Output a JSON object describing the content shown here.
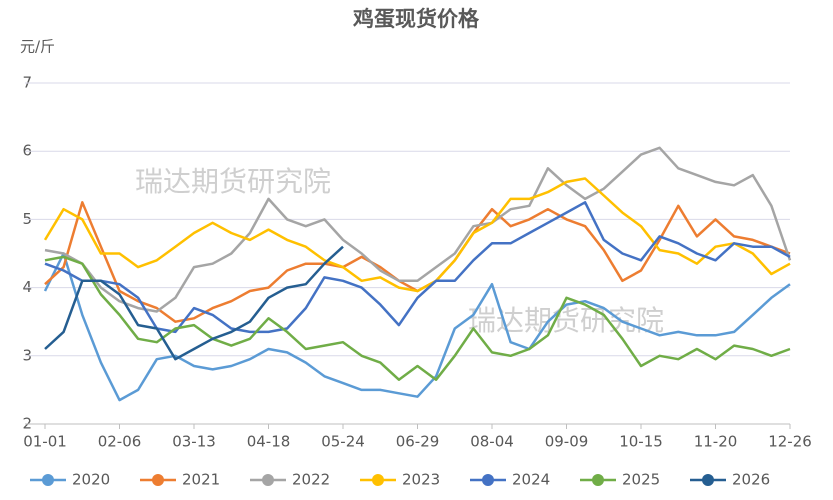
{
  "chart_data": {
    "type": "line",
    "title": "鸡蛋现货价格",
    "ylabel": "元/斤",
    "annotations": [
      "瑞达期货研究院",
      "瑞达期货研究院"
    ],
    "categories": [
      "01-01",
      null,
      null,
      null,
      "02-06",
      null,
      null,
      null,
      "03-13",
      null,
      null,
      null,
      "04-18",
      null,
      null,
      null,
      "05-24",
      null,
      null,
      null,
      "06-29",
      null,
      null,
      null,
      "08-04",
      null,
      null,
      null,
      "09-09",
      null,
      null,
      null,
      "10-15",
      null,
      null,
      null,
      "11-20",
      null,
      null,
      null,
      "12-26"
    ],
    "ylim": [
      2,
      7
    ],
    "yticks": [
      2,
      3,
      4,
      5,
      6,
      7
    ],
    "grid": true,
    "series": [
      {
        "name": "2020",
        "color": "#5b9bd5",
        "values": [
          3.95,
          4.5,
          3.6,
          2.9,
          2.35,
          2.5,
          2.95,
          3.0,
          2.85,
          2.8,
          2.85,
          2.95,
          3.1,
          3.05,
          2.9,
          2.7,
          2.6,
          2.5,
          2.5,
          2.45,
          2.4,
          2.7,
          3.4,
          3.6,
          4.05,
          3.2,
          3.1,
          3.5,
          3.75,
          3.8,
          3.7,
          3.5,
          3.4,
          3.3,
          3.35,
          3.3,
          3.3,
          3.35,
          3.6,
          3.85,
          4.05
        ]
      },
      {
        "name": "2021",
        "color": "#ed7d31",
        "values": [
          4.05,
          4.3,
          5.25,
          4.6,
          3.95,
          3.8,
          3.7,
          3.5,
          3.55,
          3.7,
          3.8,
          3.95,
          4.0,
          4.25,
          4.35,
          4.35,
          4.3,
          4.45,
          4.3,
          4.1,
          3.95,
          4.1,
          4.4,
          4.8,
          5.15,
          4.9,
          5.0,
          5.15,
          5.0,
          4.9,
          4.55,
          4.1,
          4.25,
          4.7,
          5.2,
          4.75,
          5.0,
          4.75,
          4.7,
          4.6,
          4.5
        ]
      },
      {
        "name": "2022",
        "color": "#a5a5a5",
        "values": [
          4.55,
          4.5,
          4.35,
          4.0,
          3.8,
          3.7,
          3.65,
          3.85,
          4.3,
          4.35,
          4.5,
          4.8,
          5.3,
          5.0,
          4.9,
          5.0,
          4.7,
          4.5,
          4.25,
          4.1,
          4.1,
          4.3,
          4.5,
          4.9,
          4.95,
          5.15,
          5.2,
          5.75,
          5.5,
          5.3,
          5.45,
          5.7,
          5.95,
          6.05,
          5.75,
          5.65,
          5.55,
          5.5,
          5.65,
          5.2,
          4.4
        ]
      },
      {
        "name": "2023",
        "color": "#ffc000",
        "values": [
          4.7,
          5.15,
          5.0,
          4.5,
          4.5,
          4.3,
          4.4,
          4.6,
          4.8,
          4.95,
          4.8,
          4.7,
          4.85,
          4.7,
          4.6,
          4.4,
          4.3,
          4.1,
          4.15,
          4.0,
          3.95,
          4.1,
          4.4,
          4.8,
          4.95,
          5.3,
          5.3,
          5.4,
          5.55,
          5.6,
          5.35,
          5.1,
          4.9,
          4.55,
          4.5,
          4.35,
          4.6,
          4.65,
          4.5,
          4.2,
          4.35
        ]
      },
      {
        "name": "2024",
        "color": "#4472c4",
        "values": [
          4.35,
          4.25,
          4.1,
          4.1,
          4.05,
          3.85,
          3.4,
          3.35,
          3.7,
          3.6,
          3.4,
          3.35,
          3.35,
          3.4,
          3.7,
          4.15,
          4.1,
          4.0,
          3.75,
          3.45,
          3.85,
          4.1,
          4.1,
          4.4,
          4.65,
          4.65,
          4.8,
          4.95,
          5.1,
          5.25,
          4.7,
          4.5,
          4.4,
          4.75,
          4.65,
          4.5,
          4.4,
          4.65,
          4.6,
          4.6,
          4.45
        ]
      },
      {
        "name": "2025",
        "color": "#70ad47",
        "values": [
          4.4,
          4.45,
          4.35,
          3.9,
          3.6,
          3.25,
          3.2,
          3.4,
          3.45,
          3.25,
          3.15,
          3.25,
          3.55,
          3.35,
          3.1,
          3.15,
          3.2,
          3.0,
          2.9,
          2.65,
          2.85,
          2.65,
          3.0,
          3.4,
          3.05,
          3.0,
          3.1,
          3.3,
          3.85,
          3.75,
          3.6,
          3.25,
          2.85,
          3.0,
          2.95,
          3.1,
          2.95,
          3.15,
          3.1,
          3.0,
          3.1
        ]
      },
      {
        "name": "2026",
        "color": "#255e91",
        "values": [
          3.1,
          3.35,
          4.1,
          4.1,
          3.9,
          3.45,
          3.4,
          2.95,
          3.1,
          3.25,
          3.35,
          3.5,
          3.85,
          4.0,
          4.05,
          4.35,
          4.6,
          null,
          null,
          null,
          null,
          null,
          null,
          null,
          null,
          null,
          null,
          null,
          null,
          null,
          null,
          null,
          null,
          null,
          null,
          null,
          null,
          null,
          null,
          null,
          null
        ]
      }
    ]
  }
}
